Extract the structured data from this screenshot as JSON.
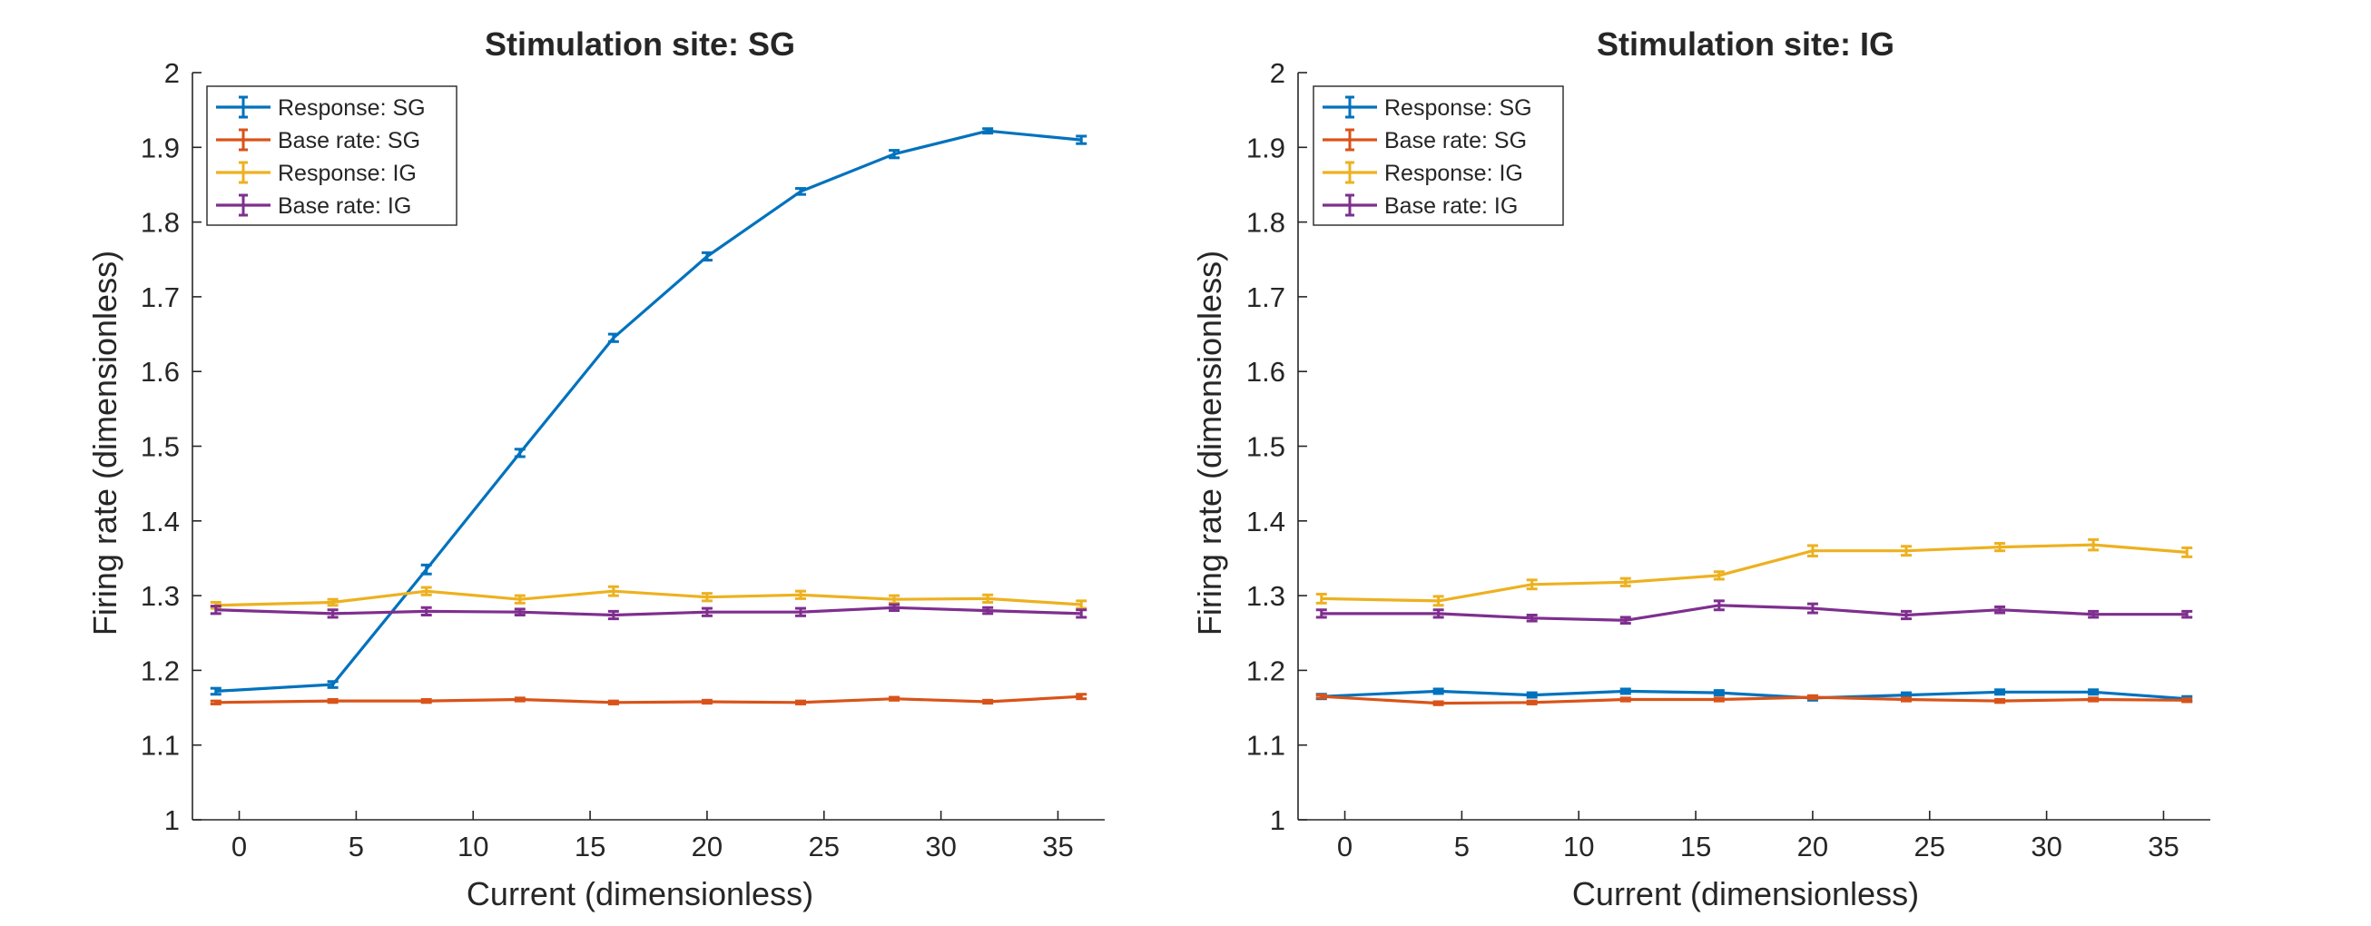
{
  "chart_data": [
    {
      "type": "line",
      "title": "Stimulation site: SG",
      "xlabel": "Current (dimensionless)",
      "ylabel": "Firing rate (dimensionless)",
      "xlim": [
        -2,
        37
      ],
      "ylim": [
        1,
        2
      ],
      "xticks": [
        0,
        5,
        10,
        15,
        20,
        25,
        30,
        35
      ],
      "yticks": [
        1,
        1.1,
        1.2,
        1.3,
        1.4,
        1.5,
        1.6,
        1.7,
        1.8,
        1.9,
        2
      ],
      "ytick_labels": [
        "1",
        "1.1",
        "1.2",
        "1.3",
        "1.4",
        "1.5",
        "1.6",
        "1.7",
        "1.8",
        "1.9",
        "2"
      ],
      "legend_position": "top-left",
      "grid": false,
      "x": [
        -1,
        4,
        8,
        12,
        16,
        20,
        24,
        28,
        32,
        36
      ],
      "series": [
        {
          "name": "Response: SG",
          "color": "#0072BD",
          "values": [
            1.172,
            1.181,
            1.335,
            1.491,
            1.645,
            1.754,
            1.841,
            1.891,
            1.922,
            1.91
          ],
          "errors": [
            0.004,
            0.004,
            0.006,
            0.005,
            0.005,
            0.005,
            0.004,
            0.005,
            0.003,
            0.005
          ]
        },
        {
          "name": "Base rate: SG",
          "color": "#D95319",
          "values": [
            1.157,
            1.159,
            1.159,
            1.161,
            1.157,
            1.158,
            1.157,
            1.162,
            1.158,
            1.165
          ],
          "errors": [
            0.002,
            0.002,
            0.002,
            0.002,
            0.002,
            0.002,
            0.002,
            0.002,
            0.002,
            0.003
          ]
        },
        {
          "name": "Response: IG",
          "color": "#EDB120",
          "values": [
            1.287,
            1.291,
            1.306,
            1.295,
            1.306,
            1.298,
            1.301,
            1.295,
            1.296,
            1.288
          ],
          "errors": [
            0.004,
            0.004,
            0.005,
            0.005,
            0.006,
            0.005,
            0.005,
            0.005,
            0.005,
            0.005
          ]
        },
        {
          "name": "Base rate: IG",
          "color": "#7E2F8E",
          "values": [
            1.281,
            1.276,
            1.279,
            1.278,
            1.274,
            1.278,
            1.278,
            1.284,
            1.28,
            1.276
          ],
          "errors": [
            0.005,
            0.005,
            0.005,
            0.004,
            0.005,
            0.005,
            0.005,
            0.004,
            0.004,
            0.005
          ]
        }
      ]
    },
    {
      "type": "line",
      "title": "Stimulation site: IG",
      "xlabel": "Current (dimensionless)",
      "ylabel": "Firing rate (dimensionless)",
      "xlim": [
        -2,
        37
      ],
      "ylim": [
        1,
        2
      ],
      "xticks": [
        0,
        5,
        10,
        15,
        20,
        25,
        30,
        35
      ],
      "yticks": [
        1,
        1.1,
        1.2,
        1.3,
        1.4,
        1.5,
        1.6,
        1.7,
        1.8,
        1.9,
        2
      ],
      "ytick_labels": [
        "1",
        "1.1",
        "1.2",
        "1.3",
        "1.4",
        "1.5",
        "1.6",
        "1.7",
        "1.8",
        "1.9",
        "2"
      ],
      "legend_position": "top-left",
      "grid": false,
      "x": [
        -1,
        4,
        8,
        12,
        16,
        20,
        24,
        28,
        32,
        36
      ],
      "series": [
        {
          "name": "Response: SG",
          "color": "#0072BD",
          "values": [
            1.165,
            1.172,
            1.167,
            1.172,
            1.17,
            1.163,
            1.167,
            1.171,
            1.171,
            1.162
          ],
          "errors": [
            0.003,
            0.003,
            0.003,
            0.003,
            0.003,
            0.003,
            0.003,
            0.003,
            0.003,
            0.003
          ]
        },
        {
          "name": "Base rate: SG",
          "color": "#D95319",
          "values": [
            1.165,
            1.156,
            1.157,
            1.161,
            1.161,
            1.164,
            1.161,
            1.159,
            1.161,
            1.16
          ],
          "errors": [
            0.002,
            0.002,
            0.002,
            0.002,
            0.002,
            0.002,
            0.002,
            0.002,
            0.002,
            0.002
          ]
        },
        {
          "name": "Response: IG",
          "color": "#EDB120",
          "values": [
            1.296,
            1.293,
            1.315,
            1.318,
            1.327,
            1.36,
            1.36,
            1.365,
            1.368,
            1.358
          ],
          "errors": [
            0.006,
            0.006,
            0.006,
            0.005,
            0.005,
            0.007,
            0.006,
            0.005,
            0.007,
            0.006
          ]
        },
        {
          "name": "Base rate: IG",
          "color": "#7E2F8E",
          "values": [
            1.276,
            1.276,
            1.27,
            1.267,
            1.287,
            1.283,
            1.274,
            1.281,
            1.275,
            1.275
          ],
          "errors": [
            0.005,
            0.005,
            0.004,
            0.004,
            0.006,
            0.006,
            0.005,
            0.004,
            0.004,
            0.004
          ]
        }
      ]
    }
  ]
}
